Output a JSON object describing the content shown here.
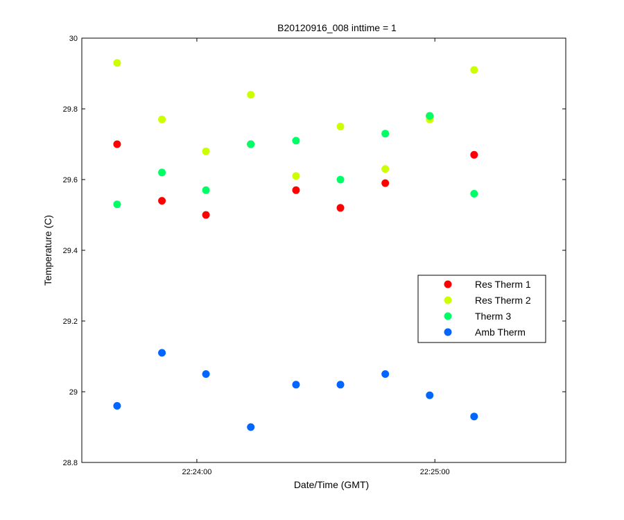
{
  "chart_data": {
    "type": "scatter",
    "title": "B20120916_008 inttime = 1",
    "xlabel": "Date/Time (GMT)",
    "ylabel": "Temperature (C)",
    "xlim_seconds": [
      -29,
      93
    ],
    "ylim": [
      28.8,
      30.0
    ],
    "yticks": [
      28.8,
      29.0,
      29.2,
      29.4,
      29.6,
      29.8,
      30.0
    ],
    "ytick_labels": [
      "28.8",
      "29",
      "29.2",
      "29.4",
      "29.6",
      "29.8",
      "30"
    ],
    "xticks_seconds": [
      0,
      60
    ],
    "xtick_labels": [
      "22:24:00",
      "22:25:00"
    ],
    "x_seconds_after_22_24_00": [
      -20.1,
      -8.8,
      2.3,
      13.6,
      25.0,
      36.2,
      47.5,
      58.7,
      69.9
    ],
    "legend_position": "center-right",
    "series": [
      {
        "name": "Res Therm 1",
        "color": "#ff0000",
        "values": [
          29.7,
          29.54,
          29.5,
          29.7,
          29.57,
          29.52,
          29.59,
          29.78,
          29.67
        ]
      },
      {
        "name": "Res Therm 2",
        "color": "#ccff00",
        "values": [
          29.93,
          29.77,
          29.68,
          29.84,
          29.61,
          29.75,
          29.63,
          29.77,
          29.91
        ]
      },
      {
        "name": "Therm 3",
        "color": "#00ff66",
        "values": [
          29.53,
          29.62,
          29.57,
          29.7,
          29.71,
          29.6,
          29.73,
          29.78,
          29.56
        ]
      },
      {
        "name": "Amb Therm",
        "color": "#0066ff",
        "values": [
          28.96,
          29.11,
          29.05,
          28.9,
          29.02,
          29.02,
          29.05,
          28.99,
          28.93
        ]
      }
    ]
  }
}
